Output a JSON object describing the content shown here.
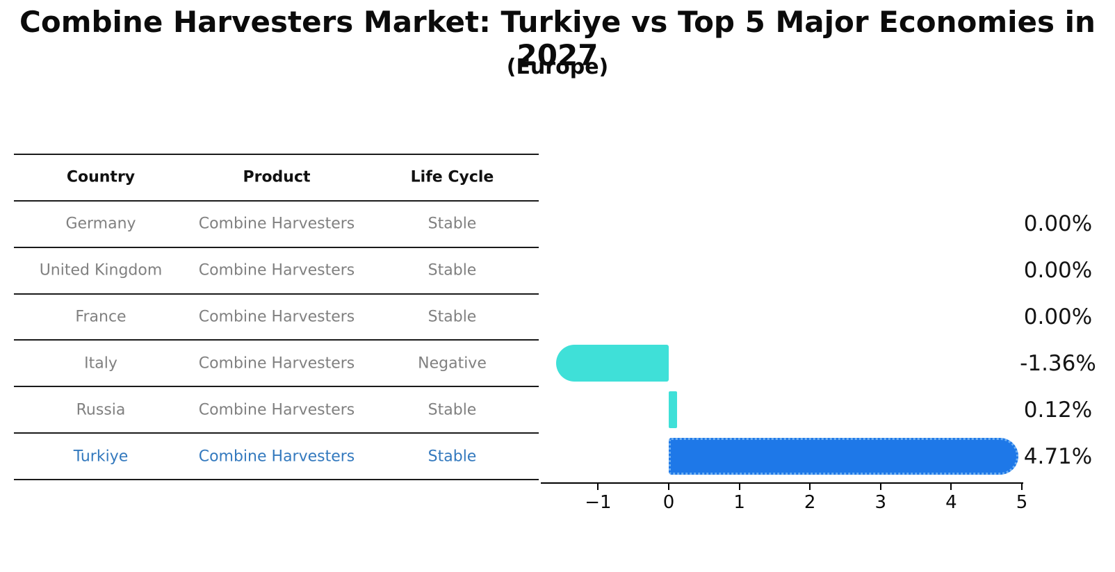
{
  "title": "Combine Harvesters Market: Turkiye vs Top 5 Major Economies in 2027",
  "subtitle": "(Europe)",
  "table": {
    "headers": [
      "Country",
      "Product",
      "Life Cycle"
    ],
    "rows": [
      {
        "country": "Germany",
        "product": "Combine Harvesters",
        "life_cycle": "Stable",
        "highlighted": false
      },
      {
        "country": "United Kingdom",
        "product": "Combine Harvesters",
        "life_cycle": "Stable",
        "highlighted": false
      },
      {
        "country": "France",
        "product": "Combine Harvesters",
        "life_cycle": "Stable",
        "highlighted": false
      },
      {
        "country": "Italy",
        "product": "Combine Harvesters",
        "life_cycle": "Negative",
        "highlighted": false
      },
      {
        "country": "Russia",
        "product": "Combine Harvesters",
        "life_cycle": "Stable",
        "highlighted": false
      },
      {
        "country": "Turkiye",
        "product": "Combine Harvesters",
        "life_cycle": "Stable",
        "highlighted": true
      }
    ]
  },
  "chart_data": {
    "type": "bar",
    "orientation": "horizontal",
    "title": "Combine Harvesters Market: Turkiye vs Top 5 Major Economies in 2027",
    "subtitle": "(Europe)",
    "categories": [
      "Germany",
      "United Kingdom",
      "France",
      "Italy",
      "Russia",
      "Turkiye"
    ],
    "values": [
      0.0,
      0.0,
      0.0,
      -1.36,
      0.12,
      4.71
    ],
    "value_labels": [
      "0.00%",
      "0.00%",
      "0.00%",
      "-1.36%",
      "0.12%",
      "4.71%"
    ],
    "unit": "%",
    "x_ticks": [
      -1,
      0,
      1,
      2,
      3,
      4,
      5
    ],
    "x_tick_labels": [
      "−1",
      "0",
      "1",
      "2",
      "3",
      "4",
      "5"
    ],
    "xlim": [
      -1.81,
      5.02
    ],
    "grid": false,
    "legend": "none",
    "bar_colors": [
      "#3FE0D8",
      "#3FE0D8",
      "#3FE0D8",
      "#3FE0D8",
      "#3FE0D8",
      "#1E78E8"
    ],
    "highlight_index": 5,
    "highlight_border_style": "dotted",
    "highlight_border_color": "#6FB0F2"
  },
  "colors": {
    "background": "#FFFFFF",
    "title_text": "#0B0B0B",
    "header_text": "#111111",
    "cell_text": "#808080",
    "highlight_text": "#3379BE",
    "table_line": "#1A1A1A",
    "bar_cyan": "#3FE0D8",
    "bar_blue": "#1E78E8",
    "axis": "#000000"
  }
}
